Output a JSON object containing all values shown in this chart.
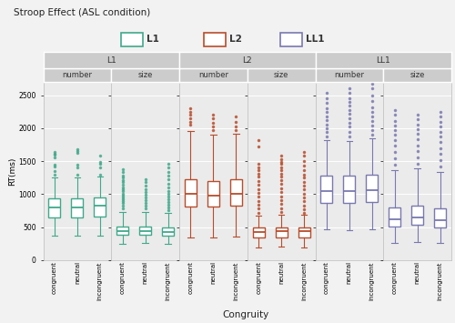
{
  "title": "Stroop Effect (ASL condition)",
  "xlabel": "Congruity",
  "ylabel": "RT(ms)",
  "ylim": [
    0,
    2700
  ],
  "yticks": [
    0,
    500,
    1000,
    1500,
    2000,
    2500
  ],
  "ytick_labels": [
    "0",
    "500",
    "1000",
    "1500",
    "2000",
    "2500"
  ],
  "facets": [
    {
      "group": "L1",
      "condition": "number"
    },
    {
      "group": "L1",
      "condition": "size"
    },
    {
      "group": "L2",
      "condition": "number"
    },
    {
      "group": "L2",
      "condition": "size"
    },
    {
      "group": "LL1",
      "condition": "number"
    },
    {
      "group": "LL1",
      "condition": "size"
    }
  ],
  "congruity_labels": [
    "congruent",
    "neutral",
    "incongruent"
  ],
  "colors": {
    "L1": "#3fa98a",
    "L2": "#b84c2b",
    "LL1": "#7878b0"
  },
  "box_data": {
    "L1_number": {
      "congruent": {
        "q1": 640,
        "median": 800,
        "q3": 940,
        "whislo": 370,
        "whishi": 1250,
        "fliers": [
          1300,
          1350,
          1420,
          1450,
          1560,
          1610,
          1600,
          1640
        ]
      },
      "neutral": {
        "q1": 645,
        "median": 800,
        "q3": 940,
        "whislo": 370,
        "whishi": 1250,
        "fliers": [
          1300,
          1400,
          1450,
          1620,
          1650,
          1680
        ]
      },
      "incongruent": {
        "q1": 655,
        "median": 820,
        "q3": 955,
        "whislo": 375,
        "whishi": 1260,
        "fliers": [
          1300,
          1400,
          1460,
          1490,
          1580
        ]
      }
    },
    "L1_size": {
      "congruent": {
        "q1": 385,
        "median": 440,
        "q3": 510,
        "whislo": 250,
        "whishi": 730,
        "fliers": [
          780,
          820,
          860,
          890,
          920,
          950,
          980,
          1010,
          1040,
          1070,
          1100,
          1140,
          1180,
          1210,
          1250,
          1280,
          1330,
          1380
        ]
      },
      "neutral": {
        "q1": 390,
        "median": 445,
        "q3": 510,
        "whislo": 255,
        "whishi": 730,
        "fliers": [
          780,
          820,
          870,
          910,
          950,
          990,
          1030,
          1080,
          1130,
          1180,
          1230
        ]
      },
      "incongruent": {
        "q1": 370,
        "median": 430,
        "q3": 500,
        "whislo": 240,
        "whishi": 720,
        "fliers": [
          760,
          800,
          840,
          880,
          920,
          960,
          1000,
          1050,
          1100,
          1160,
          1220,
          1280,
          1340,
          1400,
          1460
        ]
      }
    },
    "L2_number": {
      "congruent": {
        "q1": 810,
        "median": 1000,
        "q3": 1230,
        "whislo": 340,
        "whishi": 1960,
        "fliers": [
          2050,
          2100,
          2150,
          2200,
          2250,
          2300
        ]
      },
      "neutral": {
        "q1": 810,
        "median": 980,
        "q3": 1200,
        "whislo": 340,
        "whishi": 1900,
        "fliers": [
          1970,
          2020,
          2080,
          2150,
          2200
        ]
      },
      "incongruent": {
        "q1": 830,
        "median": 1010,
        "q3": 1230,
        "whislo": 350,
        "whishi": 1920,
        "fliers": [
          1970,
          2020,
          2100,
          2180
        ]
      }
    },
    "L2_size": {
      "congruent": {
        "q1": 340,
        "median": 430,
        "q3": 490,
        "whislo": 195,
        "whishi": 680,
        "fliers": [
          720,
          780,
          840,
          900,
          960,
          1020,
          1080,
          1140,
          1200,
          1260,
          1310,
          1360,
          1410,
          1460,
          1720,
          1820
        ]
      },
      "neutral": {
        "q1": 345,
        "median": 440,
        "q3": 500,
        "whislo": 200,
        "whishi": 690,
        "fliers": [
          730,
          790,
          850,
          910,
          970,
          1030,
          1090,
          1150,
          1210,
          1260,
          1310,
          1360,
          1410,
          1455,
          1490,
          1530,
          1580
        ]
      },
      "incongruent": {
        "q1": 342,
        "median": 435,
        "q3": 495,
        "whislo": 197,
        "whishi": 685,
        "fliers": [
          720,
          770,
          830,
          890,
          950,
          1010,
          1070,
          1130,
          1190,
          1250,
          1300,
          1360,
          1430,
          1500,
          1580,
          1640
        ]
      }
    },
    "LL1_number": {
      "congruent": {
        "q1": 870,
        "median": 1050,
        "q3": 1280,
        "whislo": 460,
        "whishi": 1820,
        "fliers": [
          1880,
          1940,
          2000,
          2060,
          2120,
          2180,
          2240,
          2300,
          2380,
          2460,
          2540
        ]
      },
      "neutral": {
        "q1": 860,
        "median": 1050,
        "q3": 1280,
        "whislo": 450,
        "whishi": 1810,
        "fliers": [
          1880,
          1950,
          2020,
          2080,
          2150,
          2220,
          2280,
          2340,
          2400,
          2460,
          2530,
          2610
        ]
      },
      "incongruent": {
        "q1": 880,
        "median": 1060,
        "q3": 1295,
        "whislo": 470,
        "whishi": 1840,
        "fliers": [
          1900,
          1970,
          2040,
          2110,
          2180,
          2250,
          2320,
          2410,
          2500,
          2600,
          2680
        ]
      }
    },
    "LL1_size": {
      "congruent": {
        "q1": 510,
        "median": 620,
        "q3": 800,
        "whislo": 265,
        "whishi": 1360,
        "fliers": [
          1440,
          1540,
          1640,
          1730,
          1820,
          1900,
          1970,
          2040,
          2110,
          2200,
          2280
        ]
      },
      "neutral": {
        "q1": 530,
        "median": 645,
        "q3": 820,
        "whislo": 275,
        "whishi": 1390,
        "fliers": [
          1460,
          1560,
          1650,
          1740,
          1830,
          1910,
          1980,
          2050,
          2130,
          2200
        ]
      },
      "incongruent": {
        "q1": 500,
        "median": 605,
        "q3": 785,
        "whislo": 260,
        "whishi": 1340,
        "fliers": [
          1420,
          1510,
          1610,
          1700,
          1790,
          1870,
          1950,
          2020,
          2100,
          2180,
          2250
        ]
      }
    }
  },
  "bg_color": "#f2f2f2",
  "panel_bg": "#ebebeb",
  "grid_color": "#ffffff",
  "facet_header_bg": "#cccccc",
  "facet_header_color": "#333333",
  "border_color": "#ffffff"
}
